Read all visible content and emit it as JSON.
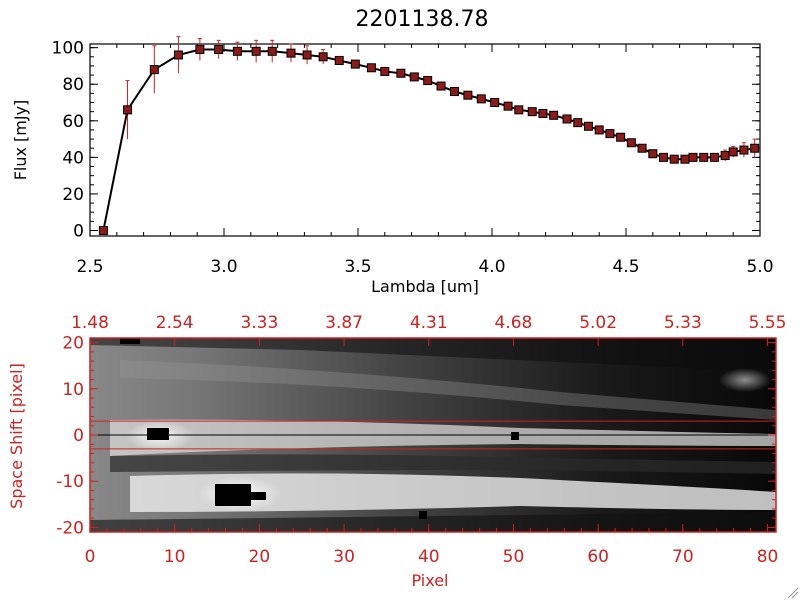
{
  "colors": {
    "axis": "#000000",
    "accent": "#cc2222",
    "marker": "#8b1a1a",
    "line": "#000000"
  },
  "chart_data": [
    {
      "type": "line",
      "title": "2201138.78",
      "xlabel": "Lambda [um]",
      "ylabel": "Flux [mJy]",
      "xlim": [
        2.5,
        5.0
      ],
      "ylim": [
        -3,
        102
      ],
      "x_ticks": [
        "2.5",
        "3.0",
        "3.5",
        "4.0",
        "4.5",
        "5.0"
      ],
      "x_tick_values": [
        2.5,
        3.0,
        3.5,
        4.0,
        4.5,
        5.0
      ],
      "y_ticks": [
        "0",
        "20",
        "40",
        "60",
        "80",
        "100"
      ],
      "y_tick_values": [
        0,
        20,
        40,
        60,
        80,
        100
      ],
      "series": [
        {
          "x": [
            2.55,
            2.64,
            2.74,
            2.83,
            2.91,
            2.98,
            3.05,
            3.12,
            3.18,
            3.25,
            3.31,
            3.37,
            3.43,
            3.49,
            3.55,
            3.6,
            3.66,
            3.71,
            3.76,
            3.81,
            3.86,
            3.91,
            3.96,
            4.01,
            4.06,
            4.1,
            4.15,
            4.19,
            4.23,
            4.28,
            4.32,
            4.36,
            4.4,
            4.44,
            4.48,
            4.52,
            4.56,
            4.6,
            4.64,
            4.68,
            4.72,
            4.75,
            4.79,
            4.83,
            4.87,
            4.9,
            4.94,
            4.98
          ],
          "y": [
            0,
            66,
            88,
            96,
            99,
            99,
            98,
            98,
            98,
            97,
            96,
            95,
            93,
            91,
            89,
            87,
            86,
            84,
            82,
            79,
            76,
            74,
            72,
            70,
            68,
            66,
            65,
            64,
            63,
            61,
            59,
            57,
            55,
            53,
            51,
            48,
            45,
            42,
            40,
            39,
            39,
            40,
            40,
            40,
            41,
            43,
            44,
            45
          ],
          "err": [
            0,
            16,
            13,
            10,
            6,
            5,
            5,
            6,
            6,
            5,
            5,
            4,
            2,
            2,
            2,
            2,
            2,
            2,
            2,
            2,
            2,
            2,
            2,
            2,
            2,
            2,
            2,
            2,
            2,
            2,
            2,
            2,
            2,
            2,
            2,
            2,
            2,
            2,
            2,
            2,
            2,
            2,
            2,
            2,
            3,
            3,
            4,
            5
          ]
        }
      ],
      "grid": false,
      "legend": "none"
    },
    {
      "type": "heatmap",
      "xlabel": "Pixel",
      "ylabel": "Space Shift [pixel]",
      "xlim": [
        0,
        81
      ],
      "ylim": [
        -21,
        21
      ],
      "x_ticks": [
        "0",
        "10",
        "20",
        "30",
        "40",
        "50",
        "60",
        "70",
        "80"
      ],
      "x_tick_values": [
        0,
        10,
        20,
        30,
        40,
        50,
        60,
        70,
        80
      ],
      "y_ticks": [
        "-20",
        "-10",
        "0",
        "10",
        "20"
      ],
      "y_tick_values": [
        -20,
        -10,
        0,
        10,
        20
      ],
      "top_ticks": [
        "1.48",
        "2.54",
        "3.33",
        "3.87",
        "4.31",
        "4.68",
        "5.02",
        "5.33",
        "5.55"
      ],
      "top_tick_values": [
        0,
        10,
        20,
        30,
        40,
        50,
        60,
        70,
        80
      ],
      "aperture_lines": [
        3,
        -3
      ],
      "center_line": 0,
      "colormap": "grayscale"
    }
  ]
}
